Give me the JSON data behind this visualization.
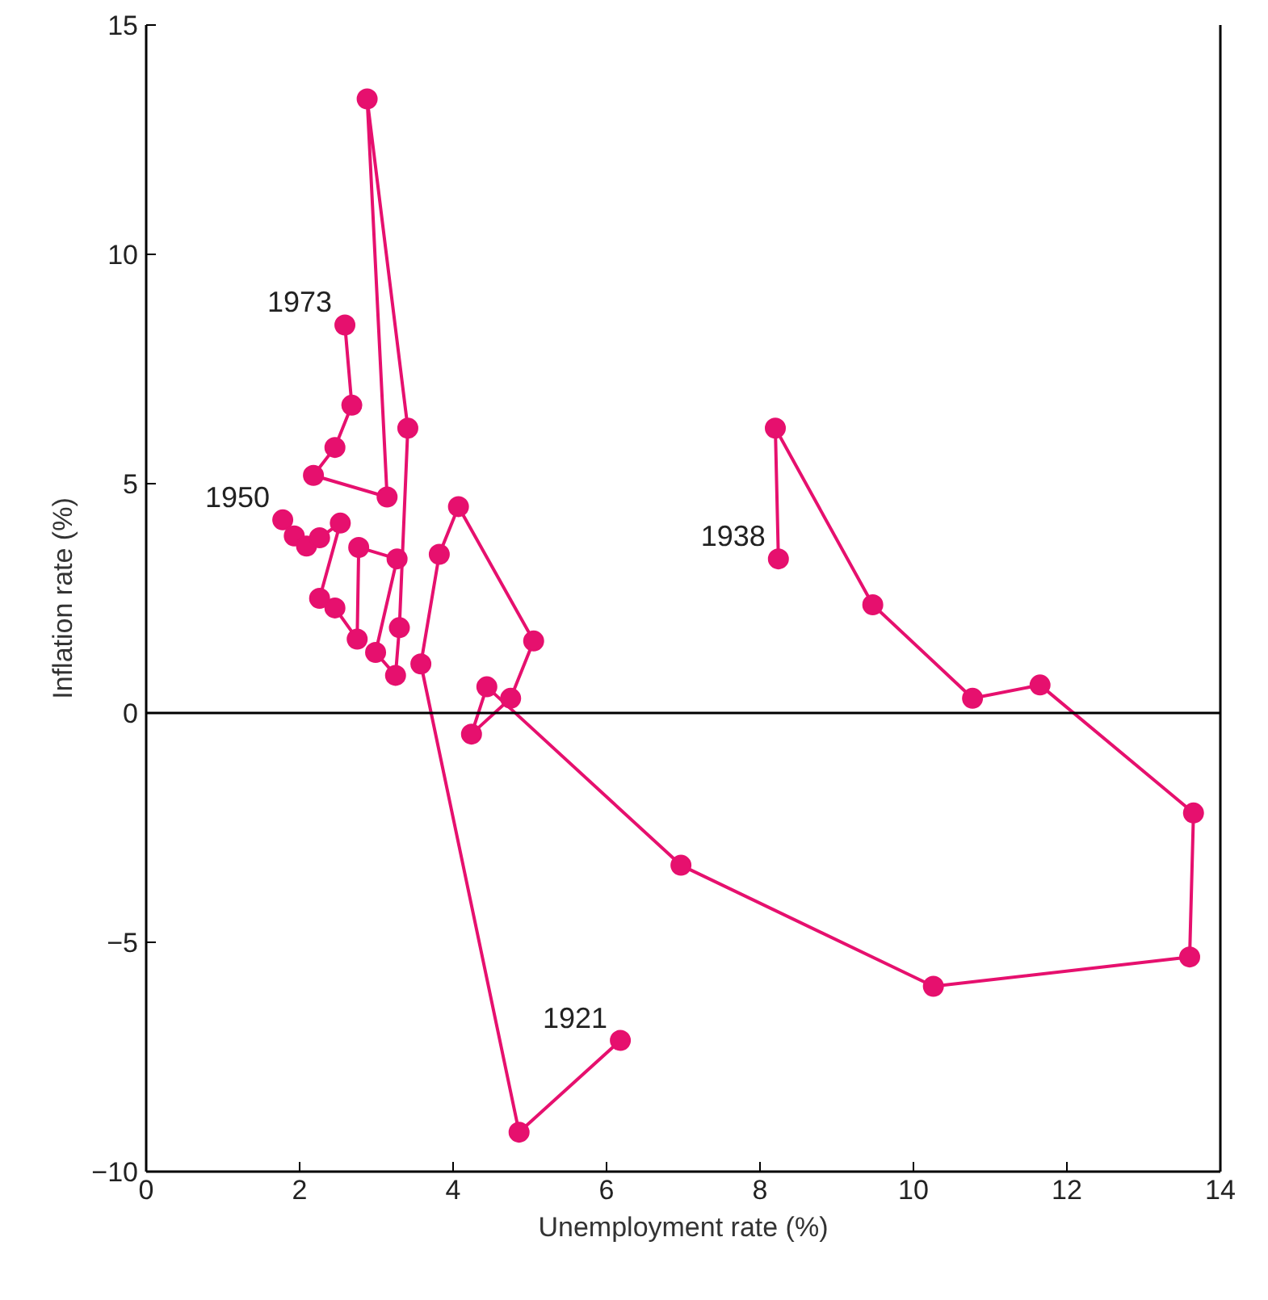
{
  "chart_data": {
    "type": "line",
    "xlabel": "Unemployment rate (%)",
    "ylabel": "Inflation rate (%)",
    "xlim": [
      0,
      14
    ],
    "ylim": [
      -10,
      15
    ],
    "xticks": [
      0,
      2,
      4,
      6,
      8,
      10,
      12,
      14
    ],
    "yticks": [
      -10,
      -5,
      0,
      5,
      10,
      15
    ],
    "grid": false,
    "marker": "circle",
    "line_style": "solid",
    "ref_lines": [
      {
        "axis": "y",
        "value": 0,
        "color": "#000000"
      }
    ],
    "annotations": [
      {
        "text": "1921",
        "x": 6.18,
        "y": -7.14
      },
      {
        "text": "1938",
        "x": 8.24,
        "y": 3.36
      },
      {
        "text": "1950",
        "x": 1.78,
        "y": 4.21
      },
      {
        "text": "1973",
        "x": 2.59,
        "y": 8.46
      }
    ],
    "series": [
      {
        "color": "#e6106e",
        "x": [
          6.18,
          4.86,
          3.58,
          3.82,
          4.07,
          5.05,
          4.75,
          4.24,
          4.44,
          6.97,
          10.26,
          13.6,
          13.65,
          11.65,
          10.77,
          9.47,
          8.2,
          8.24
        ],
        "values": [
          -7.14,
          -9.14,
          1.07,
          3.46,
          4.5,
          1.57,
          0.32,
          -0.46,
          0.57,
          -3.32,
          -5.96,
          -5.32,
          -2.18,
          0.61,
          0.32,
          2.36,
          6.21,
          3.36
        ]
      },
      {
        "color": "#e6106e",
        "x": [
          1.78,
          1.93,
          2.09,
          2.26,
          2.53,
          2.26,
          2.46,
          2.75,
          2.77,
          3.27,
          2.99,
          3.25,
          3.3,
          3.41,
          2.88,
          3.14,
          2.18,
          2.46,
          2.68,
          2.59
        ],
        "values": [
          4.21,
          3.86,
          3.64,
          3.82,
          4.14,
          2.5,
          2.29,
          1.61,
          3.61,
          3.36,
          1.32,
          0.82,
          1.86,
          6.21,
          13.39,
          4.71,
          5.18,
          5.79,
          6.71,
          8.46
        ]
      }
    ]
  }
}
